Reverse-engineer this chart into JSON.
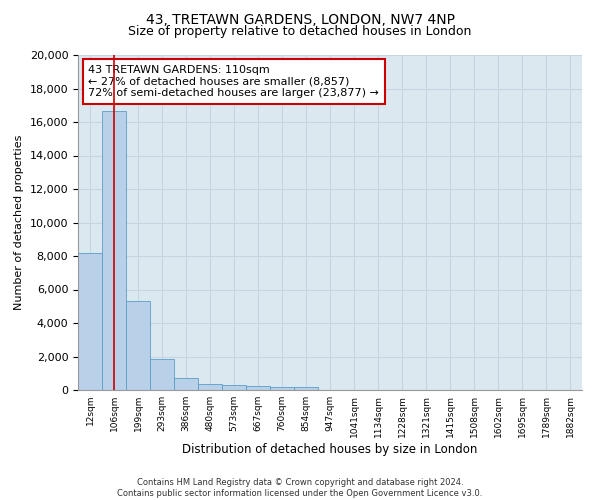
{
  "title": "43, TRETAWN GARDENS, LONDON, NW7 4NP",
  "subtitle": "Size of property relative to detached houses in London",
  "xlabel": "Distribution of detached houses by size in London",
  "ylabel": "Number of detached properties",
  "categories": [
    "12sqm",
    "106sqm",
    "199sqm",
    "293sqm",
    "386sqm",
    "480sqm",
    "573sqm",
    "667sqm",
    "760sqm",
    "854sqm",
    "947sqm",
    "1041sqm",
    "1134sqm",
    "1228sqm",
    "1321sqm",
    "1415sqm",
    "1508sqm",
    "1602sqm",
    "1695sqm",
    "1789sqm",
    "1882sqm"
  ],
  "values": [
    8150,
    16650,
    5300,
    1850,
    700,
    350,
    270,
    220,
    185,
    155,
    0,
    0,
    0,
    0,
    0,
    0,
    0,
    0,
    0,
    0,
    0
  ],
  "bar_color": "#b8d0e8",
  "bar_edge_color": "#5a9ec8",
  "vline_x": 1,
  "vline_color": "#cc0000",
  "annotation_text": "43 TRETAWN GARDENS: 110sqm\n← 27% of detached houses are smaller (8,857)\n72% of semi-detached houses are larger (23,877) →",
  "annotation_box_color": "#ffffff",
  "annotation_box_edge": "#cc0000",
  "ylim": [
    0,
    20000
  ],
  "yticks": [
    0,
    2000,
    4000,
    6000,
    8000,
    10000,
    12000,
    14000,
    16000,
    18000,
    20000
  ],
  "grid_color": "#c8d4e0",
  "bg_color": "#dce8f0",
  "footer_text": "Contains HM Land Registry data © Crown copyright and database right 2024.\nContains public sector information licensed under the Open Government Licence v3.0.",
  "title_fontsize": 10,
  "subtitle_fontsize": 9,
  "annotation_fontsize": 8
}
